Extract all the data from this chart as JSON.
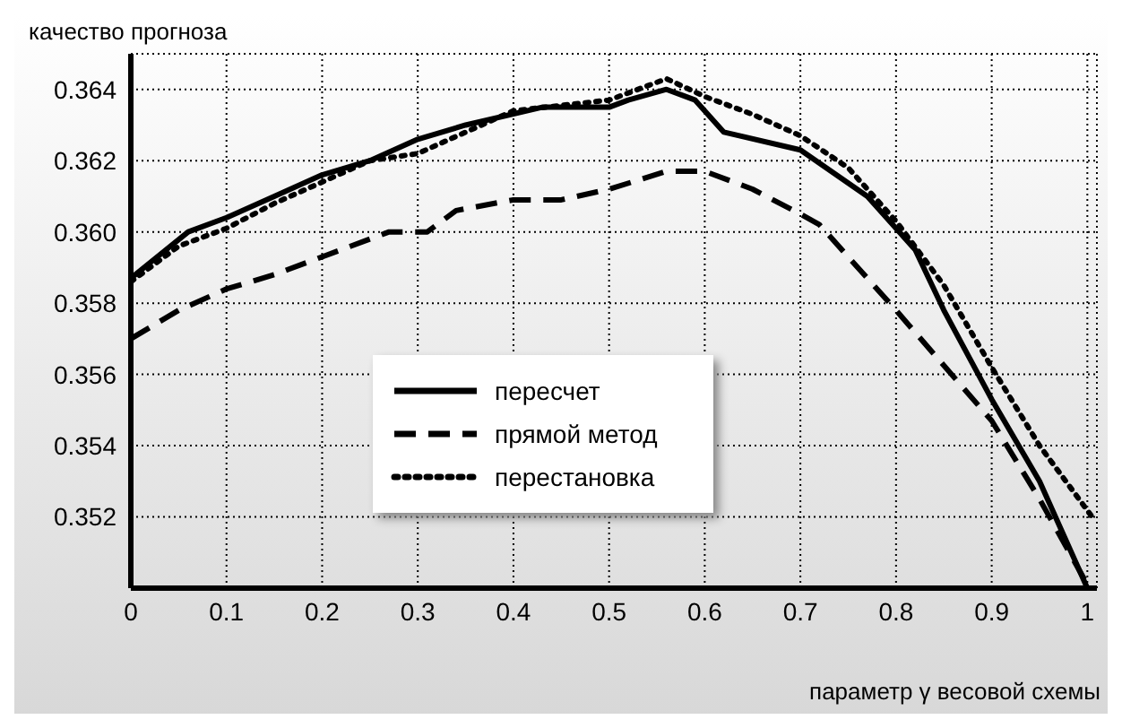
{
  "chart_data": {
    "type": "line",
    "ylabel": "качество прогноза",
    "xlabel": "параметр γ весовой схемы",
    "xlim": [
      0,
      1.01
    ],
    "ylim": [
      0.35,
      0.365
    ],
    "xticks": [
      0,
      0.1,
      0.2,
      0.3,
      0.4,
      0.5,
      0.6,
      0.7,
      0.8,
      0.9,
      1
    ],
    "yticks": [
      {
        "value": 0.352,
        "label": "0.352"
      },
      {
        "value": 0.354,
        "label": "0.354"
      },
      {
        "value": 0.356,
        "label": "0.356"
      },
      {
        "value": 0.358,
        "label": "0.358"
      },
      {
        "value": 0.36,
        "label": "0.360"
      },
      {
        "value": 0.362,
        "label": "0.362"
      },
      {
        "value": 0.364,
        "label": "0.364"
      }
    ],
    "grid": true,
    "legend": "bottom",
    "marker": "none",
    "series": [
      {
        "name": "пересчет",
        "color": "#000000",
        "line_style": "solid",
        "x": [
          0,
          0.06,
          0.1,
          0.15,
          0.2,
          0.25,
          0.3,
          0.35,
          0.43,
          0.5,
          0.52,
          0.56,
          0.59,
          0.62,
          0.7,
          0.77,
          0.82,
          0.85,
          0.9,
          0.95,
          1
        ],
        "values": [
          0.3587,
          0.36,
          0.3604,
          0.361,
          0.3616,
          0.362,
          0.3626,
          0.363,
          0.3635,
          0.3635,
          0.3637,
          0.364,
          0.3637,
          0.3628,
          0.3623,
          0.361,
          0.3595,
          0.3578,
          0.3553,
          0.353,
          0.35
        ]
      },
      {
        "name": "прямой метод",
        "color": "#000000",
        "line_style": "dashed",
        "x": [
          0,
          0.05,
          0.1,
          0.15,
          0.2,
          0.25,
          0.27,
          0.31,
          0.34,
          0.4,
          0.45,
          0.5,
          0.56,
          0.6,
          0.65,
          0.7,
          0.72,
          0.8,
          0.9,
          0.95,
          1
        ],
        "values": [
          0.357,
          0.3578,
          0.3584,
          0.3588,
          0.3593,
          0.3598,
          0.36,
          0.36,
          0.3606,
          0.3609,
          0.3609,
          0.3612,
          0.3617,
          0.3617,
          0.3612,
          0.3605,
          0.3602,
          0.3578,
          0.3547,
          0.3525,
          0.3501
        ]
      },
      {
        "name": "перестановка",
        "color": "#000000",
        "line_style": "dotted",
        "x": [
          0,
          0.05,
          0.1,
          0.15,
          0.2,
          0.25,
          0.3,
          0.35,
          0.4,
          0.5,
          0.56,
          0.6,
          0.65,
          0.7,
          0.75,
          0.8,
          0.85,
          0.9,
          0.95,
          1.005
        ],
        "values": [
          0.3586,
          0.3596,
          0.3601,
          0.3608,
          0.3614,
          0.362,
          0.3622,
          0.3628,
          0.3634,
          0.3637,
          0.3643,
          0.3638,
          0.3633,
          0.3627,
          0.3618,
          0.3603,
          0.3585,
          0.3562,
          0.354,
          0.352
        ]
      }
    ]
  }
}
